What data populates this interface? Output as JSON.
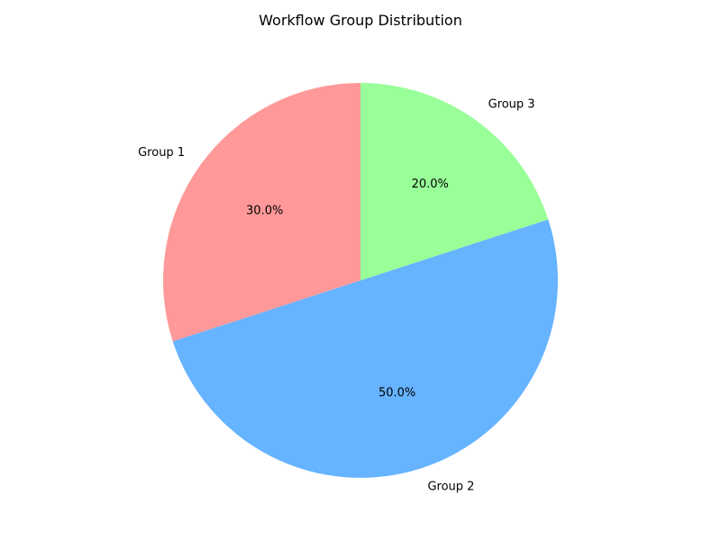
{
  "chart_data": {
    "type": "pie",
    "title": "Workflow Group Distribution",
    "categories": [
      "Group 1",
      "Group 2",
      "Group 3"
    ],
    "values": [
      30.0,
      50.0,
      20.0
    ],
    "percent_labels": [
      "30.0%",
      "50.0%",
      "20.0%"
    ],
    "colors": [
      "#ff9999",
      "#66b3ff",
      "#99ff99"
    ],
    "start_angle_deg": 90,
    "direction": "counterclockwise",
    "legend": "none"
  }
}
